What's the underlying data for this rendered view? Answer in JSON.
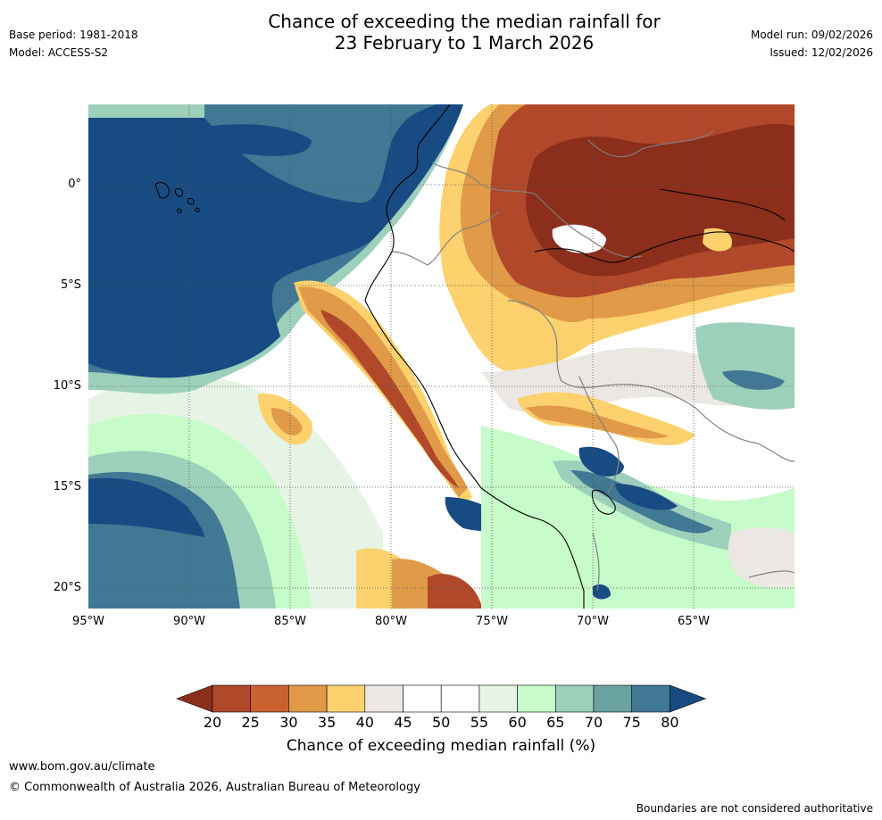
{
  "title_line1": "Chance of exceeding the median rainfall for",
  "title_line2": "23 February to 1 March 2026",
  "base_period": "Base period: 1981-2018",
  "model": "Model: ACCESS-S2",
  "model_run": "Model run: 09/02/2026",
  "issued": "Issued: 12/02/2026",
  "lat_ticks": [
    "0°",
    "5°S",
    "10°S",
    "15°S",
    "20°S"
  ],
  "lon_ticks": [
    "95°W",
    "90°W",
    "85°W",
    "80°W",
    "75°W",
    "70°W",
    "65°W"
  ],
  "colorbar": {
    "ticks": [
      "20",
      "25",
      "30",
      "35",
      "40",
      "45",
      "50",
      "55",
      "60",
      "65",
      "70",
      "75",
      "80"
    ],
    "colors": [
      "#8b2e1b",
      "#b1482a",
      "#c9622f",
      "#e09a48",
      "#fdd16d",
      "#ebe8e4",
      "#ffffff",
      "#ffffff",
      "#e6f4e6",
      "#c7fbc9",
      "#9dd0bb",
      "#6aa3a2",
      "#417894",
      "#184b82"
    ],
    "label": "Chance of exceeding median rainfall (%)"
  },
  "website": "www.bom.gov.au/climate",
  "copyright": "© Commonwealth of Australia 2026, Australian Bureau of Meteorology",
  "disclaimer": "Boundaries are not considered authoritative"
}
